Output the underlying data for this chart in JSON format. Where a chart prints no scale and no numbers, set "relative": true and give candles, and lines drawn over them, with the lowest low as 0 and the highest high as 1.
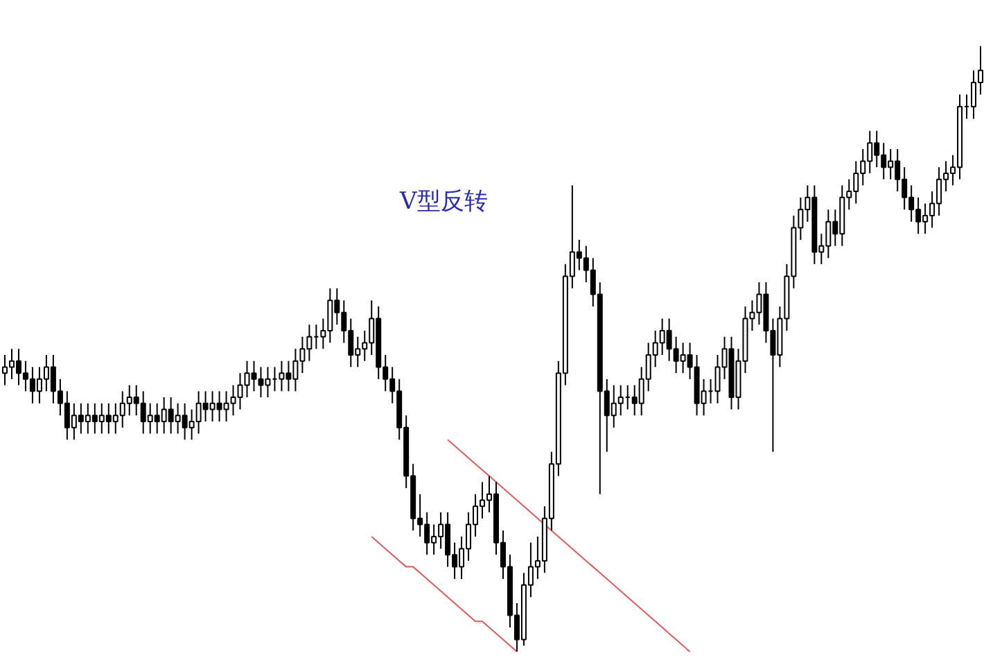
{
  "chart_data": {
    "type": "candlestick",
    "relative": true,
    "tick_labels": false,
    "grid": false,
    "annotations": [
      "V型反转"
    ],
    "categories": [
      null,
      null,
      null,
      null,
      null,
      null,
      null,
      null,
      null,
      null,
      null,
      null,
      null,
      null,
      null,
      null,
      null,
      null,
      null,
      null,
      null,
      null,
      null,
      null,
      null,
      null,
      null,
      null,
      null,
      null,
      null,
      null,
      null,
      null,
      null,
      null,
      null,
      null,
      null,
      null,
      null,
      null,
      null,
      null,
      null,
      null,
      null,
      null,
      null,
      null,
      null,
      null,
      null,
      null,
      null,
      null,
      null,
      null,
      null,
      null,
      null,
      null,
      null,
      null,
      null,
      null,
      null,
      null,
      null,
      null,
      null,
      null,
      null,
      null,
      null,
      null,
      null,
      null,
      null,
      null,
      null,
      null,
      null,
      null,
      null,
      null,
      null,
      null,
      null,
      null,
      null,
      null,
      null,
      null,
      null,
      null,
      null,
      null,
      null,
      null,
      null,
      null,
      null,
      null,
      null,
      null,
      null,
      null,
      null,
      null,
      null,
      null,
      null,
      null,
      null,
      null,
      null,
      null,
      null,
      null,
      null,
      null,
      null,
      null,
      null,
      null,
      null,
      null,
      null,
      null,
      null,
      null,
      null,
      null,
      null,
      null,
      null,
      null,
      null,
      null,
      null,
      null
    ],
    "ohlc": [
      [
        0.46,
        0.49,
        0.44,
        0.47
      ],
      [
        0.47,
        0.5,
        0.45,
        0.48
      ],
      [
        0.48,
        0.5,
        0.44,
        0.46
      ],
      [
        0.46,
        0.48,
        0.43,
        0.45
      ],
      [
        0.45,
        0.47,
        0.41,
        0.43
      ],
      [
        0.43,
        0.47,
        0.41,
        0.45
      ],
      [
        0.45,
        0.49,
        0.43,
        0.47
      ],
      [
        0.47,
        0.49,
        0.41,
        0.43
      ],
      [
        0.43,
        0.45,
        0.39,
        0.41
      ],
      [
        0.41,
        0.43,
        0.35,
        0.37
      ],
      [
        0.37,
        0.41,
        0.35,
        0.39
      ],
      [
        0.39,
        0.41,
        0.36,
        0.38
      ],
      [
        0.38,
        0.41,
        0.36,
        0.39
      ],
      [
        0.39,
        0.41,
        0.36,
        0.38
      ],
      [
        0.38,
        0.41,
        0.36,
        0.39
      ],
      [
        0.39,
        0.41,
        0.36,
        0.38
      ],
      [
        0.38,
        0.41,
        0.36,
        0.39
      ],
      [
        0.39,
        0.43,
        0.37,
        0.41
      ],
      [
        0.41,
        0.44,
        0.39,
        0.42
      ],
      [
        0.42,
        0.44,
        0.39,
        0.41
      ],
      [
        0.41,
        0.43,
        0.36,
        0.38
      ],
      [
        0.38,
        0.41,
        0.36,
        0.39
      ],
      [
        0.39,
        0.41,
        0.36,
        0.38
      ],
      [
        0.38,
        0.42,
        0.36,
        0.4
      ],
      [
        0.4,
        0.42,
        0.36,
        0.38
      ],
      [
        0.38,
        0.41,
        0.36,
        0.39
      ],
      [
        0.39,
        0.41,
        0.35,
        0.37
      ],
      [
        0.37,
        0.4,
        0.35,
        0.38
      ],
      [
        0.38,
        0.43,
        0.36,
        0.41
      ],
      [
        0.41,
        0.43,
        0.38,
        0.4
      ],
      [
        0.4,
        0.43,
        0.38,
        0.41
      ],
      [
        0.41,
        0.43,
        0.38,
        0.4
      ],
      [
        0.4,
        0.43,
        0.38,
        0.41
      ],
      [
        0.41,
        0.44,
        0.39,
        0.42
      ],
      [
        0.42,
        0.46,
        0.4,
        0.44
      ],
      [
        0.44,
        0.48,
        0.42,
        0.46
      ],
      [
        0.46,
        0.48,
        0.43,
        0.45
      ],
      [
        0.45,
        0.47,
        0.42,
        0.44
      ],
      [
        0.44,
        0.47,
        0.42,
        0.45
      ],
      [
        0.45,
        0.47,
        0.43,
        0.45
      ],
      [
        0.45,
        0.48,
        0.43,
        0.46
      ],
      [
        0.46,
        0.48,
        0.43,
        0.45
      ],
      [
        0.45,
        0.5,
        0.43,
        0.48
      ],
      [
        0.48,
        0.52,
        0.46,
        0.5
      ],
      [
        0.5,
        0.54,
        0.48,
        0.52
      ],
      [
        0.52,
        0.54,
        0.5,
        0.52
      ],
      [
        0.52,
        0.55,
        0.5,
        0.53
      ],
      [
        0.53,
        0.6,
        0.51,
        0.58
      ],
      [
        0.58,
        0.6,
        0.54,
        0.56
      ],
      [
        0.56,
        0.58,
        0.51,
        0.53
      ],
      [
        0.53,
        0.55,
        0.47,
        0.49
      ],
      [
        0.49,
        0.52,
        0.47,
        0.5
      ],
      [
        0.5,
        0.53,
        0.48,
        0.51
      ],
      [
        0.51,
        0.58,
        0.49,
        0.55
      ],
      [
        0.55,
        0.57,
        0.45,
        0.47
      ],
      [
        0.47,
        0.49,
        0.43,
        0.45
      ],
      [
        0.45,
        0.47,
        0.41,
        0.43
      ],
      [
        0.43,
        0.45,
        0.35,
        0.37
      ],
      [
        0.37,
        0.39,
        0.27,
        0.29
      ],
      [
        0.29,
        0.31,
        0.2,
        0.22
      ],
      [
        0.22,
        0.26,
        0.19,
        0.21
      ],
      [
        0.21,
        0.23,
        0.16,
        0.18
      ],
      [
        0.18,
        0.21,
        0.16,
        0.19
      ],
      [
        0.19,
        0.23,
        0.17,
        0.21
      ],
      [
        0.21,
        0.23,
        0.14,
        0.16
      ],
      [
        0.16,
        0.18,
        0.12,
        0.14
      ],
      [
        0.14,
        0.19,
        0.12,
        0.17
      ],
      [
        0.17,
        0.23,
        0.15,
        0.21
      ],
      [
        0.21,
        0.26,
        0.19,
        0.24
      ],
      [
        0.24,
        0.28,
        0.22,
        0.25
      ],
      [
        0.25,
        0.29,
        0.23,
        0.26
      ],
      [
        0.26,
        0.28,
        0.16,
        0.18
      ],
      [
        0.18,
        0.2,
        0.12,
        0.14
      ],
      [
        0.14,
        0.16,
        0.04,
        0.06
      ],
      [
        0.06,
        0.08,
        0.0,
        0.02
      ],
      [
        0.02,
        0.13,
        0.01,
        0.11
      ],
      [
        0.11,
        0.18,
        0.09,
        0.14
      ],
      [
        0.14,
        0.19,
        0.12,
        0.15
      ],
      [
        0.15,
        0.24,
        0.13,
        0.22
      ],
      [
        0.22,
        0.33,
        0.2,
        0.31
      ],
      [
        0.31,
        0.48,
        0.29,
        0.46
      ],
      [
        0.46,
        0.64,
        0.44,
        0.62
      ],
      [
        0.62,
        0.77,
        0.6,
        0.66
      ],
      [
        0.66,
        0.68,
        0.63,
        0.65
      ],
      [
        0.65,
        0.67,
        0.61,
        0.63
      ],
      [
        0.63,
        0.65,
        0.57,
        0.59
      ],
      [
        0.59,
        0.61,
        0.26,
        0.43
      ],
      [
        0.43,
        0.45,
        0.33,
        0.39
      ],
      [
        0.39,
        0.44,
        0.37,
        0.41
      ],
      [
        0.41,
        0.44,
        0.39,
        0.42
      ],
      [
        0.42,
        0.44,
        0.4,
        0.42
      ],
      [
        0.42,
        0.44,
        0.39,
        0.41
      ],
      [
        0.41,
        0.47,
        0.39,
        0.45
      ],
      [
        0.45,
        0.51,
        0.43,
        0.49
      ],
      [
        0.49,
        0.53,
        0.47,
        0.51
      ],
      [
        0.51,
        0.55,
        0.49,
        0.53
      ],
      [
        0.53,
        0.55,
        0.48,
        0.5
      ],
      [
        0.5,
        0.52,
        0.46,
        0.48
      ],
      [
        0.48,
        0.51,
        0.46,
        0.49
      ],
      [
        0.49,
        0.51,
        0.45,
        0.47
      ],
      [
        0.47,
        0.49,
        0.39,
        0.41
      ],
      [
        0.41,
        0.45,
        0.39,
        0.43
      ],
      [
        0.43,
        0.45,
        0.41,
        0.43
      ],
      [
        0.43,
        0.49,
        0.41,
        0.47
      ],
      [
        0.47,
        0.52,
        0.45,
        0.5
      ],
      [
        0.5,
        0.52,
        0.4,
        0.42
      ],
      [
        0.42,
        0.5,
        0.4,
        0.48
      ],
      [
        0.48,
        0.57,
        0.46,
        0.55
      ],
      [
        0.55,
        0.58,
        0.53,
        0.56
      ],
      [
        0.56,
        0.61,
        0.54,
        0.59
      ],
      [
        0.59,
        0.61,
        0.51,
        0.53
      ],
      [
        0.53,
        0.55,
        0.33,
        0.49
      ],
      [
        0.49,
        0.57,
        0.47,
        0.55
      ],
      [
        0.55,
        0.64,
        0.53,
        0.62
      ],
      [
        0.62,
        0.72,
        0.6,
        0.7
      ],
      [
        0.7,
        0.75,
        0.68,
        0.73
      ],
      [
        0.73,
        0.77,
        0.71,
        0.75
      ],
      [
        0.75,
        0.77,
        0.64,
        0.66
      ],
      [
        0.66,
        0.69,
        0.64,
        0.67
      ],
      [
        0.67,
        0.73,
        0.65,
        0.71
      ],
      [
        0.71,
        0.73,
        0.67,
        0.69
      ],
      [
        0.69,
        0.77,
        0.67,
        0.75
      ],
      [
        0.75,
        0.78,
        0.73,
        0.76
      ],
      [
        0.76,
        0.81,
        0.74,
        0.79
      ],
      [
        0.79,
        0.83,
        0.77,
        0.81
      ],
      [
        0.81,
        0.86,
        0.79,
        0.84
      ],
      [
        0.84,
        0.86,
        0.8,
        0.82
      ],
      [
        0.82,
        0.84,
        0.78,
        0.8
      ],
      [
        0.8,
        0.83,
        0.78,
        0.81
      ],
      [
        0.81,
        0.83,
        0.76,
        0.78
      ],
      [
        0.78,
        0.8,
        0.73,
        0.75
      ],
      [
        0.75,
        0.77,
        0.71,
        0.73
      ],
      [
        0.73,
        0.75,
        0.69,
        0.71
      ],
      [
        0.71,
        0.74,
        0.69,
        0.72
      ],
      [
        0.72,
        0.76,
        0.7,
        0.74
      ],
      [
        0.74,
        0.8,
        0.72,
        0.78
      ],
      [
        0.78,
        0.81,
        0.76,
        0.79
      ],
      [
        0.79,
        0.82,
        0.77,
        0.8
      ],
      [
        0.8,
        0.92,
        0.78,
        0.9
      ],
      [
        0.9,
        0.92,
        0.88,
        0.9
      ],
      [
        0.9,
        0.96,
        0.88,
        0.94
      ],
      [
        0.94,
        1.0,
        0.92,
        0.96
      ]
    ],
    "series": [
      {
        "type": "line",
        "color": "#e05a5a",
        "values": [
          null,
          null,
          null,
          null,
          null,
          null,
          null,
          null,
          null,
          null,
          null,
          null,
          null,
          null,
          null,
          null,
          null,
          null,
          null,
          null,
          null,
          null,
          null,
          null,
          null,
          null,
          null,
          null,
          null,
          null,
          null,
          null,
          null,
          null,
          null,
          null,
          null,
          null,
          null,
          null,
          null,
          null,
          null,
          null,
          null,
          null,
          null,
          null,
          null,
          null,
          null,
          null,
          null,
          0.19,
          0.18,
          0.17,
          0.16,
          0.15,
          0.14,
          0.14,
          0.13,
          0.12,
          0.11,
          0.1,
          0.09,
          0.08,
          0.07,
          0.06,
          0.05,
          0.05,
          0.04,
          0.03,
          0.02,
          0.01,
          0.0,
          null,
          null,
          null,
          null,
          null,
          null,
          null,
          null,
          null,
          null,
          null,
          null,
          null,
          null,
          null,
          null,
          null,
          null,
          null,
          null,
          null,
          null,
          null,
          null,
          null,
          null,
          null,
          null,
          null,
          null,
          null,
          null,
          null,
          null,
          null,
          null,
          null,
          null,
          null,
          null,
          null,
          null,
          null,
          null,
          null,
          null,
          null,
          null,
          null,
          null,
          null,
          null,
          null,
          null,
          null,
          null,
          null,
          null,
          null,
          null,
          null,
          null,
          null,
          null,
          null,
          null,
          null
        ]
      },
      {
        "type": "line",
        "color": "#e05a5a",
        "values": [
          null,
          null,
          null,
          null,
          null,
          null,
          null,
          null,
          null,
          null,
          null,
          null,
          null,
          null,
          null,
          null,
          null,
          null,
          null,
          null,
          null,
          null,
          null,
          null,
          null,
          null,
          null,
          null,
          null,
          null,
          null,
          null,
          null,
          null,
          null,
          null,
          null,
          null,
          null,
          null,
          null,
          null,
          null,
          null,
          null,
          null,
          null,
          null,
          null,
          null,
          null,
          null,
          null,
          null,
          null,
          null,
          null,
          null,
          null,
          null,
          null,
          null,
          null,
          null,
          0.35,
          0.34,
          0.33,
          0.32,
          0.31,
          0.3,
          0.29,
          0.28,
          0.27,
          0.26,
          0.25,
          0.24,
          0.23,
          0.22,
          0.21,
          0.2,
          0.19,
          0.18,
          0.17,
          0.16,
          0.15,
          0.14,
          0.13,
          0.12,
          0.11,
          0.1,
          0.09,
          0.08,
          0.07,
          0.06,
          0.05,
          0.04,
          0.03,
          0.02,
          0.01,
          0.0,
          null,
          null,
          null,
          null,
          null,
          null,
          null,
          null,
          null,
          null,
          null,
          null,
          null,
          null,
          null,
          null,
          null,
          null,
          null,
          null,
          null,
          null,
          null,
          null,
          null,
          null,
          null,
          null,
          null,
          null,
          null,
          null,
          null,
          null,
          null,
          null,
          null,
          null,
          null,
          null,
          null,
          null
        ]
      }
    ]
  }
}
